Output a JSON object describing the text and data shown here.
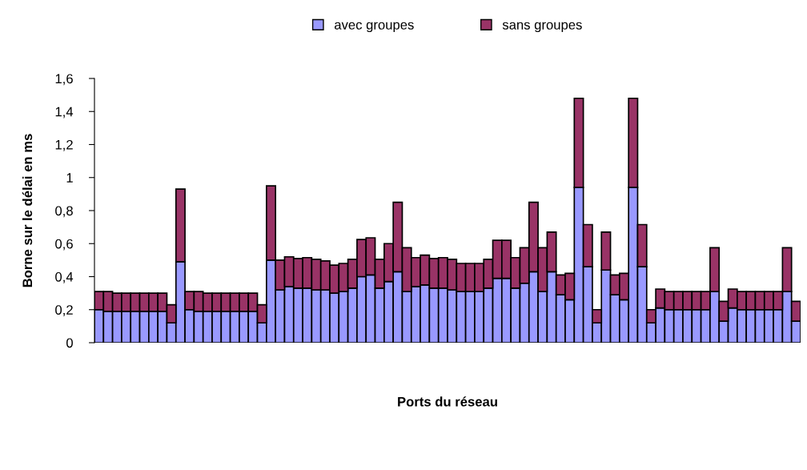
{
  "chart_data": {
    "type": "bar",
    "stacked": true,
    "xlabel": "Ports du réseau",
    "ylabel": "Borne sur le délai en ms",
    "categories": [
      null,
      null,
      null,
      null,
      null,
      null,
      null,
      null,
      null,
      null,
      null,
      null,
      null,
      null,
      null,
      null,
      null,
      null,
      null,
      null,
      null,
      null,
      null,
      null,
      null,
      null,
      null,
      null,
      null,
      null,
      null,
      null,
      null,
      null,
      null,
      null,
      null,
      null,
      null,
      null,
      null,
      null,
      null,
      null,
      null,
      null,
      null,
      null,
      null,
      null,
      null,
      null,
      null,
      null,
      null,
      null,
      null,
      null,
      null,
      null,
      null,
      null,
      null,
      null,
      null,
      null,
      null,
      null,
      null,
      null,
      null,
      null,
      null,
      null,
      null,
      null,
      null,
      null
    ],
    "series": [
      {
        "name": "avec groupes",
        "color": "#9999ff",
        "values": [
          0.2,
          0.19,
          0.19,
          0.19,
          0.19,
          0.19,
          0.19,
          0.19,
          0.12,
          0.49,
          0.2,
          0.19,
          0.19,
          0.19,
          0.19,
          0.19,
          0.19,
          0.19,
          0.12,
          0.5,
          0.32,
          0.34,
          0.33,
          0.33,
          0.32,
          0.32,
          0.3,
          0.31,
          0.33,
          0.4,
          0.41,
          0.33,
          0.37,
          0.43,
          0.31,
          0.34,
          0.35,
          0.33,
          0.33,
          0.32,
          0.31,
          0.31,
          0.31,
          0.33,
          0.39,
          0.39,
          0.33,
          0.36,
          0.43,
          0.31,
          0.43,
          0.29,
          0.26,
          0.94,
          0.46,
          0.12,
          0.44,
          0.29,
          0.26,
          0.94,
          0.46,
          0.12,
          0.21,
          0.2,
          0.2,
          0.2,
          0.2,
          0.2,
          0.31,
          0.13,
          0.21,
          0.2,
          0.2,
          0.2,
          0.2,
          0.2,
          0.31,
          0.13
        ]
      },
      {
        "name": "sans groupes",
        "color": "#993366",
        "values": [
          0.11,
          0.12,
          0.11,
          0.11,
          0.11,
          0.11,
          0.11,
          0.11,
          0.11,
          0.44,
          0.11,
          0.12,
          0.11,
          0.11,
          0.11,
          0.11,
          0.11,
          0.11,
          0.11,
          0.45,
          0.18,
          0.18,
          0.18,
          0.185,
          0.185,
          0.175,
          0.17,
          0.17,
          0.175,
          0.225,
          0.225,
          0.175,
          0.23,
          0.42,
          0.265,
          0.175,
          0.18,
          0.18,
          0.185,
          0.185,
          0.17,
          0.17,
          0.17,
          0.175,
          0.23,
          0.23,
          0.185,
          0.215,
          0.42,
          0.265,
          0.24,
          0.12,
          0.16,
          0.54,
          0.255,
          0.08,
          0.23,
          0.12,
          0.16,
          0.54,
          0.255,
          0.08,
          0.115,
          0.11,
          0.11,
          0.11,
          0.11,
          0.11,
          0.265,
          0.12,
          0.115,
          0.11,
          0.11,
          0.11,
          0.11,
          0.11,
          0.265,
          0.12
        ]
      }
    ],
    "ylim": [
      0,
      1.6
    ],
    "yticks": [
      0,
      {
        "value": 0.2,
        "label": "0,2"
      },
      {
        "value": 0.4,
        "label": "0,4"
      },
      {
        "value": 0.6,
        "label": "0,6"
      },
      {
        "value": 0.8,
        "label": "0,8"
      },
      1,
      {
        "value": 1.2,
        "label": "1,2"
      },
      {
        "value": 1.4,
        "label": "1,4"
      },
      {
        "value": 1.6,
        "label": "1,6"
      }
    ],
    "grid": false,
    "legend": "top"
  }
}
